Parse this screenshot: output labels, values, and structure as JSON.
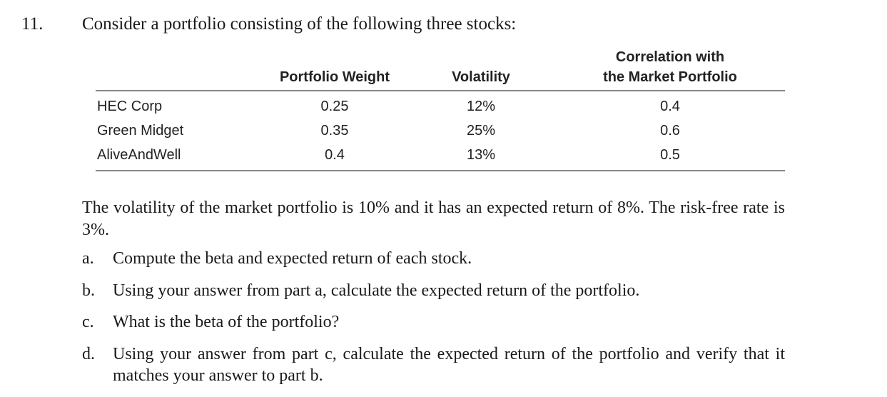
{
  "question": {
    "number": "11.",
    "intro": "Consider a portfolio consisting of the following three stocks:"
  },
  "table": {
    "headers": {
      "weight": "Portfolio Weight",
      "volatility": "Volatility",
      "correlation_line1": "Correlation with",
      "correlation_line2": "the Market Portfolio"
    },
    "rows": [
      {
        "name": "HEC Corp",
        "weight": "0.25",
        "volatility": "12%",
        "correlation": "0.4"
      },
      {
        "name": "Green Midget",
        "weight": "0.35",
        "volatility": "25%",
        "correlation": "0.6"
      },
      {
        "name": "AliveAndWell",
        "weight": "0.4",
        "volatility": "13%",
        "correlation": "0.5"
      }
    ]
  },
  "paragraph": "The volatility of the market portfolio is 10% and it has an expected return of 8%. The risk-free rate is 3%.",
  "parts": [
    {
      "letter": "a.",
      "text": "Compute the beta and expected return of each stock."
    },
    {
      "letter": "b.",
      "text": "Using your answer from part a, calculate the expected return of the portfolio."
    },
    {
      "letter": "c.",
      "text": "What is the beta of the portfolio?"
    },
    {
      "letter": "d.",
      "text": "Using your answer from part c, calculate the expected return of the portfolio and verify that it matches your answer to part b."
    }
  ]
}
